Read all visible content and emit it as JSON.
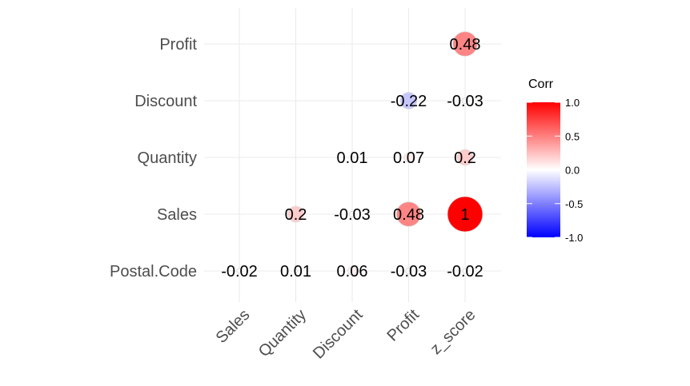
{
  "chart_data": {
    "type": "heatmap",
    "style": "correlation-circles-lower-triangle",
    "x_categories": [
      "Sales",
      "Quantity",
      "Discount",
      "Profit",
      "z_score"
    ],
    "y_categories": [
      "Profit",
      "Discount",
      "Quantity",
      "Sales",
      "Postal.Code"
    ],
    "cells": [
      {
        "x": "z_score",
        "y": "Profit",
        "value": 0.48,
        "label": "0.48"
      },
      {
        "x": "Profit",
        "y": "Discount",
        "value": -0.22,
        "label": "-0.22"
      },
      {
        "x": "z_score",
        "y": "Discount",
        "value": -0.03,
        "label": "-0.03"
      },
      {
        "x": "Discount",
        "y": "Quantity",
        "value": 0.01,
        "label": "0.01"
      },
      {
        "x": "Profit",
        "y": "Quantity",
        "value": 0.07,
        "label": "0.07"
      },
      {
        "x": "z_score",
        "y": "Quantity",
        "value": 0.2,
        "label": "0.2"
      },
      {
        "x": "Quantity",
        "y": "Sales",
        "value": 0.2,
        "label": "0.2"
      },
      {
        "x": "Discount",
        "y": "Sales",
        "value": -0.03,
        "label": "-0.03"
      },
      {
        "x": "Profit",
        "y": "Sales",
        "value": 0.48,
        "label": "0.48"
      },
      {
        "x": "z_score",
        "y": "Sales",
        "value": 1,
        "label": "1"
      },
      {
        "x": "Sales",
        "y": "Postal.Code",
        "value": -0.02,
        "label": "-0.02"
      },
      {
        "x": "Quantity",
        "y": "Postal.Code",
        "value": 0.01,
        "label": "0.01"
      },
      {
        "x": "Discount",
        "y": "Postal.Code",
        "value": 0.06,
        "label": "0.06"
      },
      {
        "x": "Profit",
        "y": "Postal.Code",
        "value": -0.03,
        "label": "-0.03"
      },
      {
        "x": "z_score",
        "y": "Postal.Code",
        "value": -0.02,
        "label": "-0.02"
      }
    ],
    "legend": {
      "title": "Corr",
      "placement": "right",
      "range": [
        -1,
        1
      ],
      "ticks": [
        {
          "value": 1.0,
          "label": "1.0"
        },
        {
          "value": 0.5,
          "label": "0.5"
        },
        {
          "value": 0.0,
          "label": "0.0"
        },
        {
          "value": -0.5,
          "label": "-0.5"
        },
        {
          "value": -1.0,
          "label": "-1.0"
        }
      ]
    },
    "colors": {
      "low": "#0000ff",
      "mid": "#ffffff",
      "high": "#ff0000"
    },
    "grid": true
  }
}
